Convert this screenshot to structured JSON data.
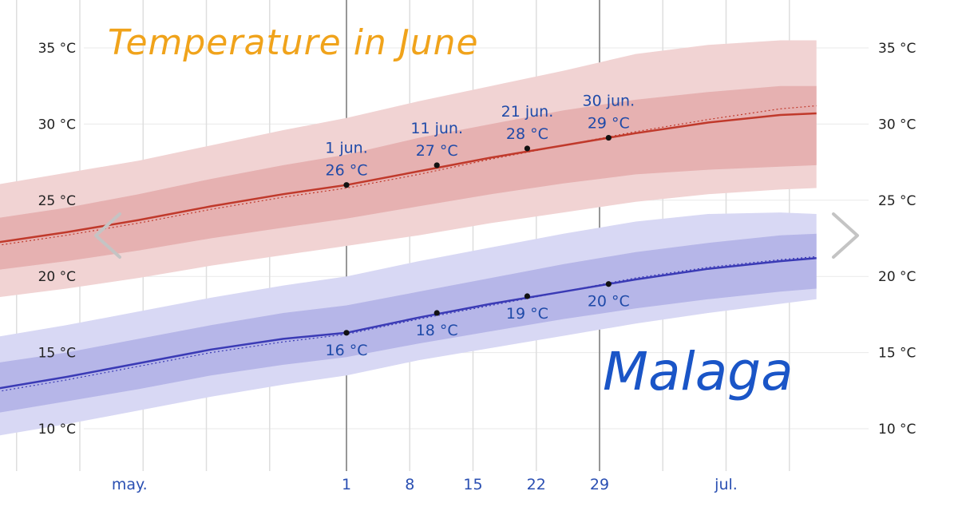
{
  "title": "Temperature in June",
  "city": "Malaga",
  "colors": {
    "high_line": "#c0392b",
    "high_band_inner": "#e6b1b1",
    "high_band_outer": "#f1d3d3",
    "low_line": "#3a3ab5",
    "low_band_inner": "#b6b6e8",
    "low_band_outer": "#d8d8f4",
    "title": "#f0a31b",
    "city": "#1a55c7"
  },
  "nav": {
    "prev_icon": "chevron-left-icon",
    "next_icon": "chevron-right-icon"
  },
  "chart_data": {
    "type": "line",
    "x_unit": "day of year",
    "xlim": [
      113,
      204
    ],
    "ylim": [
      8,
      37
    ],
    "y_ticks": [
      {
        "value": 10,
        "label": "10 °C"
      },
      {
        "value": 15,
        "label": "15 °C"
      },
      {
        "value": 20,
        "label": "20 °C"
      },
      {
        "value": 25,
        "label": "25 °C"
      },
      {
        "value": 30,
        "label": "30 °C"
      },
      {
        "value": 35,
        "label": "35 °C"
      }
    ],
    "x_ticks": [
      {
        "x": 128,
        "label": "may."
      },
      {
        "x": 152,
        "label": "1"
      },
      {
        "x": 159,
        "label": "8"
      },
      {
        "x": 166,
        "label": "15"
      },
      {
        "x": 173,
        "label": "22"
      },
      {
        "x": 180,
        "label": "29"
      },
      {
        "x": 194,
        "label": "jul."
      }
    ],
    "grid_x": [
      115.5,
      122.5,
      129.5,
      136.5,
      143.5,
      152,
      159,
      166,
      173,
      180,
      187,
      194,
      201
    ],
    "highlight_x": [
      152,
      180
    ],
    "series": [
      {
        "x": [
          113,
          121,
          129,
          137,
          145,
          152,
          160,
          168,
          176,
          184,
          192,
          200,
          204
        ],
        "mean": [
          22.2,
          22.9,
          23.7,
          24.6,
          25.4,
          26.0,
          26.9,
          27.8,
          28.6,
          29.4,
          30.1,
          30.6,
          30.7
        ],
        "mean_dotted": [
          22.0,
          22.7,
          23.5,
          24.4,
          25.2,
          25.8,
          26.7,
          27.7,
          28.6,
          29.5,
          30.3,
          31.0,
          31.2
        ],
        "inner_lo": [
          20.4,
          21.0,
          21.7,
          22.5,
          23.2,
          23.8,
          24.6,
          25.4,
          26.1,
          26.7,
          27.0,
          27.2,
          27.3
        ],
        "inner_hi": [
          23.8,
          24.5,
          25.4,
          26.4,
          27.3,
          28.0,
          29.1,
          30.0,
          30.9,
          31.6,
          32.1,
          32.5,
          32.5
        ],
        "outer_lo": [
          18.6,
          19.2,
          19.9,
          20.7,
          21.4,
          22.0,
          22.7,
          23.5,
          24.2,
          24.9,
          25.4,
          25.7,
          25.8
        ],
        "outer_hi": [
          26.0,
          26.8,
          27.6,
          28.6,
          29.6,
          30.4,
          31.5,
          32.5,
          33.5,
          34.6,
          35.2,
          35.5,
          35.5
        ]
      },
      {
        "x": [
          113,
          121,
          129,
          137,
          145,
          152,
          160,
          168,
          176,
          184,
          192,
          200,
          204
        ],
        "mean": [
          12.6,
          13.4,
          14.3,
          15.2,
          15.9,
          16.3,
          17.3,
          18.2,
          19.0,
          19.8,
          20.5,
          21.0,
          21.2
        ],
        "mean_dotted": [
          12.4,
          13.2,
          14.1,
          15.0,
          15.7,
          16.2,
          17.2,
          18.1,
          19.0,
          19.9,
          20.6,
          21.1,
          21.3
        ],
        "inner_lo": [
          11.0,
          11.8,
          12.6,
          13.5,
          14.2,
          14.7,
          15.6,
          16.4,
          17.2,
          17.9,
          18.5,
          19.0,
          19.2
        ],
        "inner_hi": [
          14.3,
          15.0,
          15.9,
          16.8,
          17.6,
          18.1,
          19.0,
          19.9,
          20.8,
          21.6,
          22.2,
          22.7,
          22.8
        ],
        "outer_lo": [
          9.5,
          10.3,
          11.2,
          12.1,
          12.9,
          13.5,
          14.5,
          15.3,
          16.1,
          16.9,
          17.6,
          18.2,
          18.5
        ],
        "outer_hi": [
          16.0,
          16.8,
          17.7,
          18.6,
          19.4,
          20.0,
          21.0,
          21.9,
          22.8,
          23.6,
          24.1,
          24.2,
          24.1
        ]
      }
    ],
    "points": [
      {
        "x": 152,
        "y": 26.0,
        "date": "1 jun.",
        "temp": "26 °C",
        "pos": "above"
      },
      {
        "x": 162,
        "y": 27.3,
        "date": "11 jun.",
        "temp": "27 °C",
        "pos": "above"
      },
      {
        "x": 172,
        "y": 28.4,
        "date": "21 jun.",
        "temp": "28 °C",
        "pos": "above"
      },
      {
        "x": 181,
        "y": 29.1,
        "date": "30 jun.",
        "temp": "29 °C",
        "pos": "above"
      },
      {
        "x": 152,
        "y": 16.3,
        "date": "",
        "temp": "16 °C",
        "pos": "below"
      },
      {
        "x": 162,
        "y": 17.6,
        "date": "",
        "temp": "18 °C",
        "pos": "below"
      },
      {
        "x": 172,
        "y": 18.7,
        "date": "",
        "temp": "19 °C",
        "pos": "below"
      },
      {
        "x": 181,
        "y": 19.5,
        "date": "",
        "temp": "20 °C",
        "pos": "below"
      }
    ]
  }
}
